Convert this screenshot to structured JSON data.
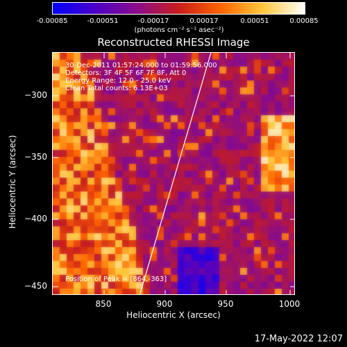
{
  "colorbar": {
    "ticks": [
      "-0.00085",
      "-0.00051",
      "-0.00017",
      "0.00017",
      "0.00051",
      "0.00085"
    ],
    "units": "(photons cm⁻² s⁻¹ asec⁻²)",
    "colors": [
      "#0000ff",
      "#4b00c8",
      "#8a0d8a",
      "#c81e1e",
      "#ff6400",
      "#ffc83c",
      "#ffffff"
    ]
  },
  "title": "Reconstructed RHESSI Image",
  "info": {
    "time_range": "30-Dec-2011 01:57:24.000 to 01:59:56.000",
    "detectors": "Detectors: 3F 4F 5F 6F 7F 8F, Att 0",
    "energy": "Energy Range: 12.0 - 25.0 keV",
    "clean": "Clean     Total counts: 6.13E+03",
    "peak": "Position of Peak = [864,-363]"
  },
  "axes": {
    "x_label": "Heliocentric X (arcsec)",
    "y_label": "Heliocentric Y (arcsec)",
    "x_ticks": [
      "850",
      "900",
      "950",
      "1000"
    ],
    "y_ticks": [
      "−300",
      "−350",
      "−400",
      "−450"
    ]
  },
  "footer_date": "17-May-2022 12:07"
}
